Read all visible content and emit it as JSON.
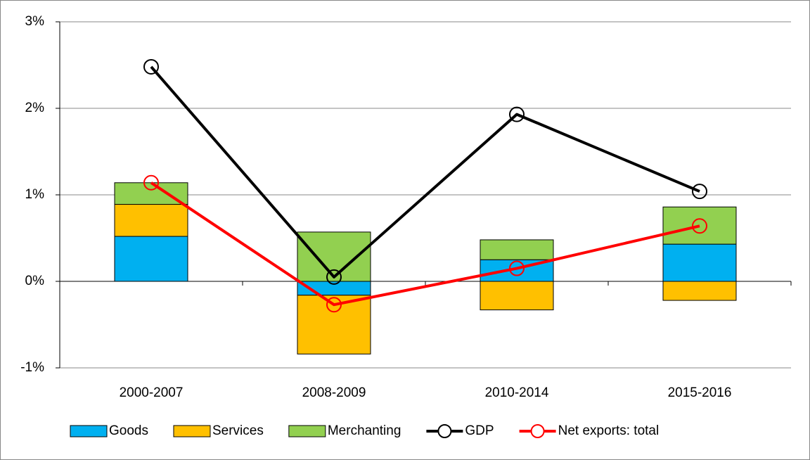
{
  "chart_data": {
    "type": "bar",
    "categories": [
      "2000-2007",
      "2008-2009",
      "2010-2014",
      "2015-2016"
    ],
    "series": [
      {
        "name": "Goods",
        "type": "bar",
        "color": "#00b0f0",
        "values": [
          0.52,
          -0.16,
          0.25,
          0.43
        ]
      },
      {
        "name": "Services",
        "type": "bar",
        "color": "#ffc000",
        "values": [
          0.37,
          -0.68,
          -0.33,
          -0.22
        ]
      },
      {
        "name": "Merchanting",
        "type": "bar",
        "color": "#92d050",
        "values": [
          0.25,
          0.57,
          0.23,
          0.43
        ]
      },
      {
        "name": "GDP",
        "type": "line",
        "color": "#000000",
        "values": [
          2.48,
          0.05,
          1.93,
          1.04
        ]
      },
      {
        "name": "Net exports: total",
        "type": "line",
        "color": "#ff0000",
        "values": [
          1.14,
          -0.27,
          0.15,
          0.64
        ]
      }
    ],
    "ylim": [
      -1,
      3
    ],
    "yticks": [
      {
        "value": -1,
        "label": "-1%"
      },
      {
        "value": 0,
        "label": "0%"
      },
      {
        "value": 1,
        "label": "1%"
      },
      {
        "value": 2,
        "label": "2%"
      },
      {
        "value": 3,
        "label": "3%"
      }
    ],
    "grid": true,
    "legend": "bottom"
  }
}
